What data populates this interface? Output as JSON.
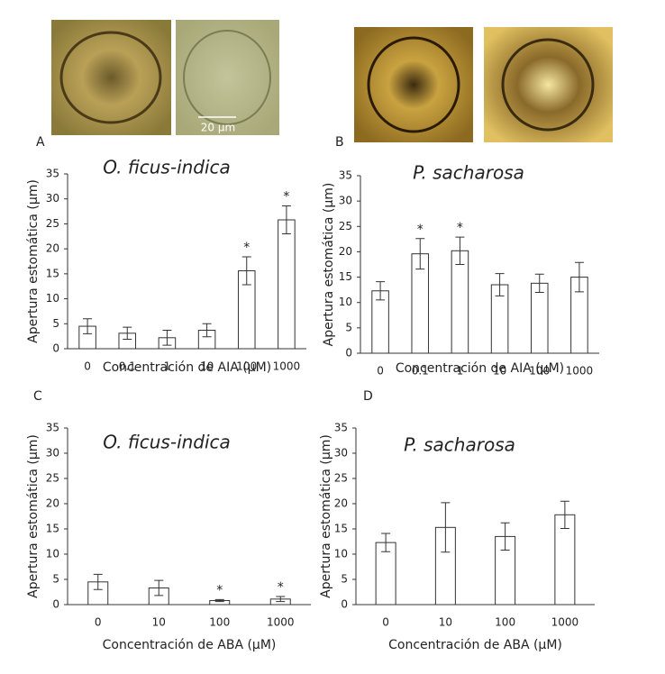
{
  "figure": {
    "panel_labels": [
      "A",
      "B",
      "C",
      "D"
    ],
    "scale_bar": "20 µm"
  },
  "chart_data": [
    {
      "type": "bar",
      "title": "O. ficus-indica",
      "x_label": "Concentración de AIA (µM)",
      "y_label": "Apertura estomática (µm)",
      "categories": [
        "0",
        "0.1",
        "1",
        "10",
        "100",
        "1000"
      ],
      "values": [
        4.5,
        3.1,
        2.2,
        3.7,
        15.6,
        25.8
      ],
      "errors": [
        1.5,
        1.2,
        1.5,
        1.3,
        2.8,
        2.8
      ],
      "annotations": [
        {
          "category": "100",
          "text": "*"
        },
        {
          "category": "1000",
          "text": "*"
        }
      ],
      "color": "#ffffff",
      "ylim": [
        0,
        35
      ],
      "yticks": [
        0,
        5,
        10,
        15,
        20,
        25,
        30,
        35
      ],
      "grid": false
    },
    {
      "type": "bar",
      "title": "P. sacharosa",
      "x_label": "Concentración de AIA (µM)",
      "y_label": "Apertura estomática (µm)",
      "categories": [
        "0",
        "0.1",
        "1",
        "10",
        "100",
        "1000"
      ],
      "values": [
        12.3,
        19.6,
        20.2,
        13.5,
        13.8,
        15.0
      ],
      "errors": [
        1.8,
        3.0,
        2.7,
        2.2,
        1.8,
        2.9
      ],
      "annotations": [
        {
          "category": "0.1",
          "text": "*"
        },
        {
          "category": "1",
          "text": "*"
        }
      ],
      "color": "#ffffff",
      "ylim": [
        0,
        35
      ],
      "yticks": [
        0,
        5,
        10,
        15,
        20,
        25,
        30,
        35
      ],
      "grid": false
    },
    {
      "type": "bar",
      "title": "O. ficus-indica",
      "x_label": "Concentración de ABA (µM)",
      "y_label": "Apertura estomática (µm)",
      "categories": [
        "0",
        "10",
        "100",
        "1000"
      ],
      "values": [
        4.5,
        3.3,
        0.8,
        1.1
      ],
      "errors": [
        1.5,
        1.5,
        0.2,
        0.5
      ],
      "annotations": [
        {
          "category": "100",
          "text": "*"
        },
        {
          "category": "1000",
          "text": "*"
        }
      ],
      "color": "#ffffff",
      "ylim": [
        0,
        35
      ],
      "yticks": [
        0,
        5,
        10,
        15,
        20,
        25,
        30,
        35
      ],
      "grid": false
    },
    {
      "type": "bar",
      "title": "P. sacharosa",
      "x_label": "Concentración de ABA (µM)",
      "y_label": "Apertura estomática (µm)",
      "categories": [
        "0",
        "10",
        "100",
        "1000"
      ],
      "values": [
        12.3,
        15.3,
        13.5,
        17.8
      ],
      "errors": [
        1.8,
        4.9,
        2.7,
        2.7
      ],
      "color": "#ffffff",
      "ylim": [
        0,
        35
      ],
      "yticks": [
        0,
        5,
        10,
        15,
        20,
        25,
        30,
        35
      ],
      "grid": false
    }
  ]
}
